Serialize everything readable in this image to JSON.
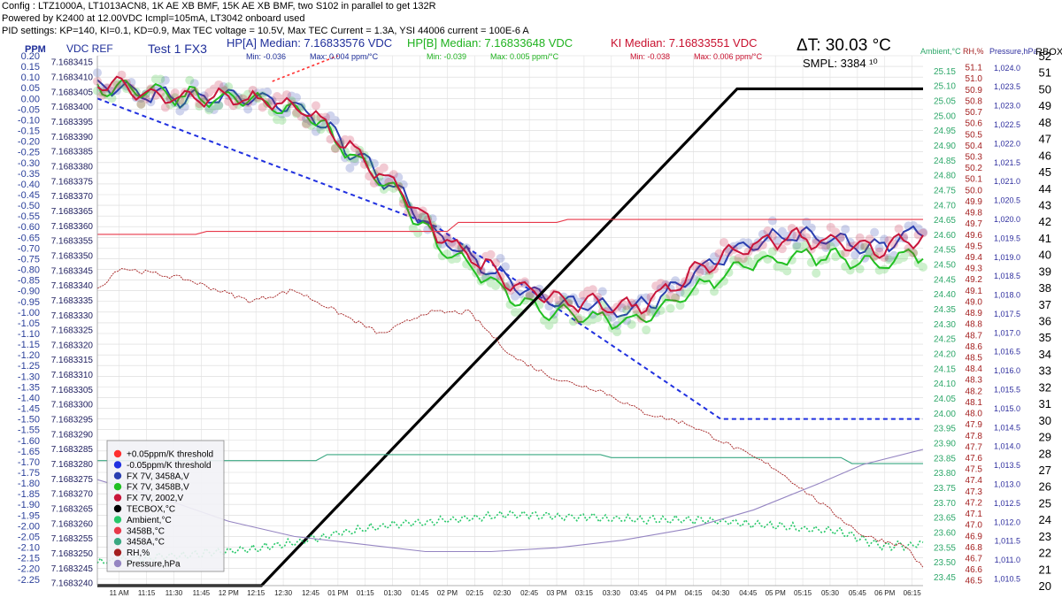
{
  "header": {
    "config": "Config : LTZ1000A, LT1013ACN8, 1K AE XB BMF, 15K AE XB BMF, two S102 in parallel to get 132R",
    "power": "Powered by K2400 at 12.00VDC Icmpl=105mA, LT3042 onboard used",
    "pid": "PID settings: KP=140, KI=0.1, KD=0.9, Max TEC voltage = 10.5V, Max TEC Current = 1.3A, YSI 44006 current = 100E-6 A"
  },
  "chart_data": {
    "type": "line",
    "title": "Test 1 FX3",
    "labels": {
      "ppm_axis": "PPM",
      "vdc_axis": "VDC REF",
      "ambient_axis": "Ambient,°C",
      "rh_axis": "RH,%",
      "pressure_axis": "Pressure,hPa",
      "rbox_axis": "RBOX,"
    },
    "stats": [
      {
        "label": "HP[A] Median: 7.16833576 VDC",
        "min": "Min: -0.036",
        "max": "Max: 0.004 ppm/°C",
        "color": "#1f2f9a"
      },
      {
        "label": "HP[B] Median: 7.16833648 VDC",
        "min": "Min: -0.039",
        "max": "Max: 0.005 ppm/°C",
        "color": "#1fb21f"
      },
      {
        "label": "KI Median: 7.16833551 VDC",
        "min": "Min: -0.038",
        "max": "Max: 0.006 ppm/°C",
        "color": "#c8102e"
      }
    ],
    "delta_t": "ΔT: 30.03 °C",
    "samples": "SMPL: 3384 ¹⁰",
    "ppm_ticks": [
      "0.20",
      "0.15",
      "0.10",
      "0.05",
      "0.00",
      "-0.05",
      "-0.10",
      "-0.15",
      "-0.20",
      "-0.25",
      "-0.30",
      "-0.35",
      "-0.40",
      "-0.45",
      "-0.50",
      "-0.55",
      "-0.60",
      "-0.65",
      "-0.70",
      "-0.75",
      "-0.80",
      "-0.85",
      "-0.90",
      "-0.95",
      "-1.00",
      "-1.05",
      "-1.10",
      "-1.15",
      "-1.20",
      "-1.25",
      "-1.30",
      "-1.35",
      "-1.40",
      "-1.45",
      "-1.50",
      "-1.55",
      "-1.60",
      "-1.65",
      "-1.70",
      "-1.75",
      "-1.80",
      "-1.85",
      "-1.90",
      "-1.95",
      "-2.00",
      "-2.05",
      "-2.10",
      "-2.15",
      "-2.20",
      "-2.25"
    ],
    "vdc_ticks": [
      "7.1683415",
      "7.1683410",
      "7.1683405",
      "7.1683400",
      "7.1683395",
      "7.1683390",
      "7.1683385",
      "7.1683380",
      "7.1683375",
      "7.1683370",
      "7.1683365",
      "7.1683360",
      "7.1683355",
      "7.1683350",
      "7.1683345",
      "7.1683340",
      "7.1683335",
      "7.1683330",
      "7.1683325",
      "7.1683320",
      "7.1683315",
      "7.1683310",
      "7.1683305",
      "7.1683300",
      "7.1683295",
      "7.1683290",
      "7.1683285",
      "7.1683280",
      "7.1683275",
      "7.1683270",
      "7.1683265",
      "7.1683260",
      "7.1683255",
      "7.1683250",
      "7.1683245",
      "7.1683240"
    ],
    "ambient_ticks": [
      "25.15",
      "25.10",
      "25.05",
      "25.00",
      "24.95",
      "24.90",
      "24.85",
      "24.80",
      "24.75",
      "24.70",
      "24.65",
      "24.60",
      "24.55",
      "24.50",
      "24.45",
      "24.40",
      "24.35",
      "24.30",
      "24.25",
      "24.20",
      "24.15",
      "24.10",
      "24.05",
      "24.00",
      "23.95",
      "23.90",
      "23.85",
      "23.80",
      "23.75",
      "23.70",
      "23.65",
      "23.60",
      "23.55",
      "23.50",
      "23.45"
    ],
    "rh_ticks": [
      "51.1",
      "51.0",
      "50.9",
      "50.8",
      "50.7",
      "50.6",
      "50.5",
      "50.4",
      "50.3",
      "50.2",
      "50.1",
      "50.0",
      "49.9",
      "49.8",
      "49.7",
      "49.6",
      "49.5",
      "49.4",
      "49.3",
      "49.2",
      "49.1",
      "49.0",
      "48.9",
      "48.8",
      "48.7",
      "48.6",
      "48.5",
      "48.4",
      "48.3",
      "48.2",
      "48.1",
      "48.0",
      "47.9",
      "47.8",
      "47.7",
      "47.6",
      "47.5",
      "47.4",
      "47.3",
      "47.2",
      "47.1",
      "47.0",
      "46.9",
      "46.8",
      "46.7",
      "46.6",
      "46.5"
    ],
    "pressure_ticks": [
      "1,024.0",
      "1,023.5",
      "1,023.0",
      "1,022.5",
      "1,022.0",
      "1,021.5",
      "1,021.0",
      "1,020.5",
      "1,020.0",
      "1,019.5",
      "1,019.0",
      "1,018.5",
      "1,018.0",
      "1,017.5",
      "1,017.0",
      "1,016.5",
      "1,016.0",
      "1,015.5",
      "1,015.0",
      "1,014.5",
      "1,014.0",
      "1,013.5",
      "1,013.0",
      "1,012.5",
      "1,012.0",
      "1,011.5",
      "1,011.0",
      "1,010.5"
    ],
    "rbox_ticks": [
      "52",
      "51",
      "50",
      "49",
      "48",
      "47",
      "46",
      "45",
      "44",
      "43",
      "42",
      "41",
      "40",
      "39",
      "38",
      "37",
      "36",
      "35",
      "34",
      "33",
      "32",
      "31",
      "30",
      "29",
      "28",
      "27",
      "26",
      "25",
      "24",
      "23",
      "22",
      "21",
      "20"
    ],
    "x_ticks": [
      "11 AM",
      "11:15",
      "11:30",
      "11:45",
      "12 PM",
      "12:15",
      "12:30",
      "12:45",
      "01 PM",
      "01:15",
      "01:30",
      "01:45",
      "02 PM",
      "02:15",
      "02:30",
      "02:45",
      "03 PM",
      "03:15",
      "03:30",
      "03:45",
      "04 PM",
      "04:15",
      "04:30",
      "04:45",
      "05 PM",
      "05:15",
      "05:30",
      "05:45",
      "06 PM",
      "06:15"
    ],
    "x_range_hours": [
      10.8,
      18.35
    ],
    "ppm_range": [
      -2.28,
      0.2
    ],
    "series": [
      {
        "name": "+0.05ppm/K threshold",
        "color": "#ff3030",
        "style": "dotted"
      },
      {
        "name": "-0.05ppm/K threshold",
        "color": "#2030e0",
        "style": "dashed",
        "x": [
          10.8,
          13.9,
          16.5,
          16.9,
          18.35
        ],
        "y": [
          0.0,
          -0.6,
          -1.5,
          -1.5,
          -1.5
        ]
      },
      {
        "name": "FX 7V, 3458A,V",
        "color": "#2a3fb0",
        "x": [
          10.8,
          11.2,
          11.6,
          12.1,
          12.7,
          13.2,
          13.6,
          13.9,
          14.3,
          14.6,
          14.9,
          15.3,
          15.7,
          16.0,
          16.3,
          16.7,
          17.1,
          17.5,
          17.9,
          18.35
        ],
        "y": [
          0.07,
          0.02,
          0.0,
          0.01,
          -0.05,
          -0.28,
          -0.45,
          -0.64,
          -0.78,
          -0.87,
          -0.94,
          -0.97,
          -0.99,
          -0.91,
          -0.8,
          -0.7,
          -0.64,
          -0.66,
          -0.7,
          -0.62
        ]
      },
      {
        "name": "FX 7V, 3458B,V",
        "color": "#22c022",
        "x": [
          10.8,
          11.2,
          11.6,
          12.1,
          12.7,
          13.2,
          13.6,
          13.9,
          14.3,
          14.6,
          14.9,
          15.3,
          15.7,
          16.0,
          16.3,
          16.7,
          17.1,
          17.5,
          17.9,
          18.35
        ],
        "y": [
          0.06,
          0.03,
          0.01,
          0.0,
          -0.06,
          -0.3,
          -0.48,
          -0.68,
          -0.82,
          -0.93,
          -0.99,
          -1.03,
          -1.05,
          -0.98,
          -0.88,
          -0.78,
          -0.74,
          -0.74,
          -0.78,
          -0.72
        ]
      },
      {
        "name": "FX 7V, 2002,V",
        "color": "#c8153a",
        "x": [
          10.8,
          11.2,
          11.6,
          12.1,
          12.7,
          13.2,
          13.6,
          13.9,
          14.3,
          14.6,
          14.9,
          15.3,
          15.7,
          16.0,
          16.3,
          16.7,
          17.1,
          17.5,
          17.9,
          18.35
        ],
        "y": [
          0.08,
          0.03,
          0.0,
          0.0,
          -0.04,
          -0.27,
          -0.44,
          -0.63,
          -0.77,
          -0.86,
          -0.93,
          -0.96,
          -0.98,
          -0.9,
          -0.8,
          -0.7,
          -0.65,
          -0.67,
          -0.71,
          -0.64
        ]
      },
      {
        "name": "TECBOX,°C",
        "color": "#000000",
        "axis": "rbox",
        "x": [
          10.8,
          12.3,
          16.65,
          16.75,
          18.35
        ],
        "y": [
          20.0,
          20.0,
          50.0,
          50.0,
          50.0
        ]
      },
      {
        "name": "Ambient,°C",
        "color": "#28c86a",
        "axis": "ambient",
        "x": [
          10.8,
          11.5,
          12.2,
          12.8,
          13.4,
          14.0,
          14.6,
          15.2,
          15.8,
          16.4,
          17.0,
          17.6,
          18.0,
          18.35
        ],
        "y": [
          23.5,
          23.52,
          23.54,
          23.58,
          23.62,
          23.64,
          23.66,
          23.65,
          23.64,
          23.64,
          23.62,
          23.6,
          23.55,
          23.56
        ]
      },
      {
        "name": "3458B,°C",
        "color": "#e8384a",
        "axis": "ambient",
        "x": [
          10.8,
          11.7,
          11.8,
          14.0,
          14.1,
          15.0,
          15.1,
          18.35
        ],
        "y": [
          24.6,
          24.6,
          24.61,
          24.61,
          24.64,
          24.64,
          24.65,
          24.65
        ]
      },
      {
        "name": "3458A,°C",
        "color": "#3aa882",
        "axis": "ambient",
        "x": [
          10.8,
          12.8,
          12.9,
          15.4,
          15.5,
          17.6,
          17.7,
          18.35
        ],
        "y": [
          23.84,
          23.84,
          23.86,
          23.86,
          23.85,
          23.85,
          23.83,
          23.83
        ]
      },
      {
        "name": "RH,%",
        "color": "#a42020",
        "axis": "rh",
        "x": [
          10.8,
          11.0,
          11.6,
          12.2,
          12.6,
          13.0,
          13.4,
          13.8,
          14.2,
          14.6,
          15.0,
          15.4,
          15.8,
          16.2,
          16.6,
          17.0,
          17.4,
          17.8,
          18.2,
          18.35
        ],
        "y": [
          49.1,
          49.3,
          49.2,
          49.0,
          49.1,
          48.9,
          48.7,
          48.9,
          48.9,
          48.5,
          48.3,
          48.2,
          48.0,
          47.9,
          47.7,
          47.5,
          47.2,
          46.9,
          46.8,
          46.6
        ]
      },
      {
        "name": "Pressure,hPa",
        "color": "#9585c2",
        "axis": "pressure",
        "x": [
          10.8,
          11.5,
          12.0,
          12.6,
          13.2,
          13.8,
          14.4,
          15.0,
          15.6,
          16.2,
          16.8,
          17.4,
          17.8,
          18.35
        ],
        "y": [
          1013.1,
          1012.5,
          1012.0,
          1011.6,
          1011.4,
          1011.2,
          1011.2,
          1011.3,
          1011.5,
          1011.8,
          1012.3,
          1013.0,
          1013.5,
          1013.9
        ]
      }
    ]
  }
}
